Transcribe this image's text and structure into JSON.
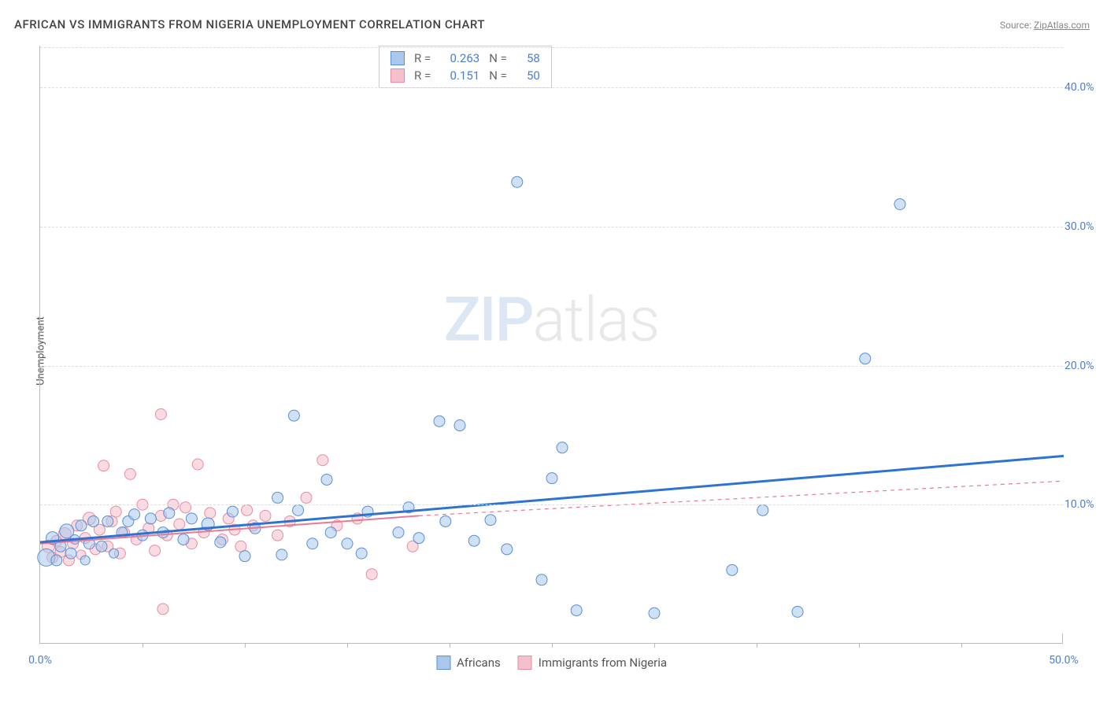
{
  "title": "AFRICAN VS IMMIGRANTS FROM NIGERIA UNEMPLOYMENT CORRELATION CHART",
  "source_label": "Source: ",
  "source_name": "ZipAtlas.com",
  "y_axis_label": "Unemployment",
  "watermark": {
    "part1": "ZIP",
    "part2": "atlas"
  },
  "colors": {
    "series1_fill": "#a9c8ec",
    "series1_stroke": "#5a8fd6",
    "series2_fill": "#f4c0cb",
    "series2_stroke": "#e98ba3",
    "trend1": "#2f73d1",
    "trend2": "#e77a95",
    "axis_text_blue": "#4a7fd0",
    "grid": "#dddddd"
  },
  "xlim": [
    0,
    50
  ],
  "ylim": [
    0,
    43
  ],
  "y_ticks": [
    {
      "v": 10,
      "label": "10.0%"
    },
    {
      "v": 20,
      "label": "20.0%"
    },
    {
      "v": 30,
      "label": "30.0%"
    },
    {
      "v": 40,
      "label": "40.0%"
    }
  ],
  "x_ticks_major": [
    0,
    50
  ],
  "x_ticks_minor": [
    5,
    10,
    15,
    20,
    25,
    30,
    35,
    40,
    45
  ],
  "x_labels": [
    {
      "v": 0,
      "label": "0.0%"
    },
    {
      "v": 50,
      "label": "50.0%"
    }
  ],
  "stats": [
    {
      "series": 1,
      "R_label": "R =",
      "R": "0.263",
      "N_label": "N =",
      "N": "58"
    },
    {
      "series": 2,
      "R_label": "R =",
      "R": "0.151",
      "N_label": "N =",
      "N": "50"
    }
  ],
  "legend": [
    {
      "series": 1,
      "label": "Africans"
    },
    {
      "series": 2,
      "label": "Immigrants from Nigeria"
    }
  ],
  "trend_lines": {
    "series1": {
      "x1": 0,
      "y1": 7.3,
      "x2": 50,
      "y2": 13.5,
      "width": 3,
      "dash": "none"
    },
    "series2_solid": {
      "x1": 0,
      "y1": 7.2,
      "x2": 18.5,
      "y2": 9.2,
      "width": 2,
      "dash": "none"
    },
    "series2_dash": {
      "x1": 18.5,
      "y1": 9.2,
      "x2": 50,
      "y2": 11.7,
      "width": 1.2,
      "dash": "5,5"
    }
  },
  "marker_radius_base": 7,
  "series1_points": [
    {
      "x": 0.3,
      "y": 6.2,
      "r": 11
    },
    {
      "x": 0.6,
      "y": 7.6,
      "r": 8
    },
    {
      "x": 0.8,
      "y": 6.0,
      "r": 7
    },
    {
      "x": 1.0,
      "y": 7.0,
      "r": 7
    },
    {
      "x": 1.3,
      "y": 8.1,
      "r": 9
    },
    {
      "x": 1.5,
      "y": 6.5,
      "r": 7
    },
    {
      "x": 1.7,
      "y": 7.5,
      "r": 6
    },
    {
      "x": 2.0,
      "y": 8.5,
      "r": 7
    },
    {
      "x": 2.2,
      "y": 6.0,
      "r": 6
    },
    {
      "x": 2.4,
      "y": 7.2,
      "r": 7
    },
    {
      "x": 2.6,
      "y": 8.8,
      "r": 7
    },
    {
      "x": 3.0,
      "y": 7.0,
      "r": 7
    },
    {
      "x": 3.3,
      "y": 8.8,
      "r": 7
    },
    {
      "x": 3.6,
      "y": 6.5,
      "r": 6
    },
    {
      "x": 4.0,
      "y": 8.0,
      "r": 7
    },
    {
      "x": 4.3,
      "y": 8.8,
      "r": 7
    },
    {
      "x": 4.6,
      "y": 9.3,
      "r": 7
    },
    {
      "x": 5.0,
      "y": 7.8,
      "r": 7
    },
    {
      "x": 5.4,
      "y": 9.0,
      "r": 7
    },
    {
      "x": 6.0,
      "y": 8.0,
      "r": 7
    },
    {
      "x": 6.3,
      "y": 9.4,
      "r": 7
    },
    {
      "x": 7.0,
      "y": 7.5,
      "r": 7
    },
    {
      "x": 7.4,
      "y": 9.0,
      "r": 7
    },
    {
      "x": 8.2,
      "y": 8.6,
      "r": 8
    },
    {
      "x": 8.8,
      "y": 7.3,
      "r": 7
    },
    {
      "x": 9.4,
      "y": 9.5,
      "r": 7
    },
    {
      "x": 10.0,
      "y": 6.3,
      "r": 7
    },
    {
      "x": 10.5,
      "y": 8.3,
      "r": 7
    },
    {
      "x": 11.6,
      "y": 10.5,
      "r": 7
    },
    {
      "x": 11.8,
      "y": 6.4,
      "r": 7
    },
    {
      "x": 12.4,
      "y": 16.4,
      "r": 7
    },
    {
      "x": 12.6,
      "y": 9.6,
      "r": 7
    },
    {
      "x": 13.3,
      "y": 7.2,
      "r": 7
    },
    {
      "x": 14.0,
      "y": 11.8,
      "r": 7
    },
    {
      "x": 14.2,
      "y": 8.0,
      "r": 7
    },
    {
      "x": 15.0,
      "y": 7.2,
      "r": 7
    },
    {
      "x": 15.7,
      "y": 6.5,
      "r": 7
    },
    {
      "x": 16.0,
      "y": 9.5,
      "r": 7
    },
    {
      "x": 17.5,
      "y": 8.0,
      "r": 7
    },
    {
      "x": 18.0,
      "y": 9.8,
      "r": 7
    },
    {
      "x": 18.5,
      "y": 7.6,
      "r": 7
    },
    {
      "x": 19.5,
      "y": 16.0,
      "r": 7
    },
    {
      "x": 19.8,
      "y": 8.8,
      "r": 7
    },
    {
      "x": 20.5,
      "y": 15.7,
      "r": 7
    },
    {
      "x": 21.2,
      "y": 7.4,
      "r": 7
    },
    {
      "x": 22.0,
      "y": 8.9,
      "r": 7
    },
    {
      "x": 22.8,
      "y": 6.8,
      "r": 7
    },
    {
      "x": 23.3,
      "y": 33.2,
      "r": 7
    },
    {
      "x": 24.5,
      "y": 4.6,
      "r": 7
    },
    {
      "x": 25.0,
      "y": 11.9,
      "r": 7
    },
    {
      "x": 25.5,
      "y": 14.1,
      "r": 7
    },
    {
      "x": 26.2,
      "y": 2.4,
      "r": 7
    },
    {
      "x": 30.0,
      "y": 2.2,
      "r": 7
    },
    {
      "x": 33.8,
      "y": 5.3,
      "r": 7
    },
    {
      "x": 35.3,
      "y": 9.6,
      "r": 7
    },
    {
      "x": 37.0,
      "y": 2.3,
      "r": 7
    },
    {
      "x": 40.3,
      "y": 20.5,
      "r": 7
    },
    {
      "x": 42.0,
      "y": 31.6,
      "r": 7
    }
  ],
  "series2_points": [
    {
      "x": 0.4,
      "y": 7.0,
      "r": 8
    },
    {
      "x": 0.6,
      "y": 6.2,
      "r": 7
    },
    {
      "x": 0.8,
      "y": 7.4,
      "r": 7
    },
    {
      "x": 1.0,
      "y": 6.6,
      "r": 7
    },
    {
      "x": 1.2,
      "y": 7.9,
      "r": 8
    },
    {
      "x": 1.4,
      "y": 6.0,
      "r": 7
    },
    {
      "x": 1.6,
      "y": 7.2,
      "r": 7
    },
    {
      "x": 1.8,
      "y": 8.5,
      "r": 7
    },
    {
      "x": 2.0,
      "y": 6.4,
      "r": 6
    },
    {
      "x": 2.2,
      "y": 7.6,
      "r": 7
    },
    {
      "x": 2.4,
      "y": 9.0,
      "r": 8
    },
    {
      "x": 2.7,
      "y": 6.8,
      "r": 7
    },
    {
      "x": 2.9,
      "y": 8.2,
      "r": 7
    },
    {
      "x": 3.1,
      "y": 12.8,
      "r": 7
    },
    {
      "x": 3.3,
      "y": 7.0,
      "r": 7
    },
    {
      "x": 3.5,
      "y": 8.8,
      "r": 7
    },
    {
      "x": 3.7,
      "y": 9.5,
      "r": 7
    },
    {
      "x": 3.9,
      "y": 6.5,
      "r": 7
    },
    {
      "x": 4.1,
      "y": 8.0,
      "r": 7
    },
    {
      "x": 4.4,
      "y": 12.2,
      "r": 7
    },
    {
      "x": 4.7,
      "y": 7.5,
      "r": 7
    },
    {
      "x": 5.0,
      "y": 10.0,
      "r": 7
    },
    {
      "x": 5.3,
      "y": 8.3,
      "r": 7
    },
    {
      "x": 5.6,
      "y": 6.7,
      "r": 7
    },
    {
      "x": 5.9,
      "y": 16.5,
      "r": 7
    },
    {
      "x": 5.9,
      "y": 9.2,
      "r": 7
    },
    {
      "x": 6.2,
      "y": 7.8,
      "r": 7
    },
    {
      "x": 6.5,
      "y": 10.0,
      "r": 7
    },
    {
      "x": 6.8,
      "y": 8.6,
      "r": 7
    },
    {
      "x": 7.1,
      "y": 9.8,
      "r": 7
    },
    {
      "x": 7.4,
      "y": 7.2,
      "r": 7
    },
    {
      "x": 7.7,
      "y": 12.9,
      "r": 7
    },
    {
      "x": 8.0,
      "y": 8.0,
      "r": 7
    },
    {
      "x": 8.3,
      "y": 9.4,
      "r": 7
    },
    {
      "x": 6.0,
      "y": 2.5,
      "r": 7
    },
    {
      "x": 8.9,
      "y": 7.5,
      "r": 7
    },
    {
      "x": 9.2,
      "y": 9.0,
      "r": 7
    },
    {
      "x": 9.5,
      "y": 8.2,
      "r": 7
    },
    {
      "x": 9.8,
      "y": 7.0,
      "r": 7
    },
    {
      "x": 10.1,
      "y": 9.6,
      "r": 7
    },
    {
      "x": 10.4,
      "y": 8.5,
      "r": 7
    },
    {
      "x": 11.0,
      "y": 9.2,
      "r": 7
    },
    {
      "x": 11.6,
      "y": 7.8,
      "r": 7
    },
    {
      "x": 12.2,
      "y": 8.8,
      "r": 7
    },
    {
      "x": 13.0,
      "y": 10.5,
      "r": 7
    },
    {
      "x": 13.8,
      "y": 13.2,
      "r": 7
    },
    {
      "x": 14.5,
      "y": 8.5,
      "r": 7
    },
    {
      "x": 15.5,
      "y": 9.0,
      "r": 7
    },
    {
      "x": 16.2,
      "y": 5.0,
      "r": 7
    },
    {
      "x": 18.2,
      "y": 7.0,
      "r": 7
    }
  ]
}
